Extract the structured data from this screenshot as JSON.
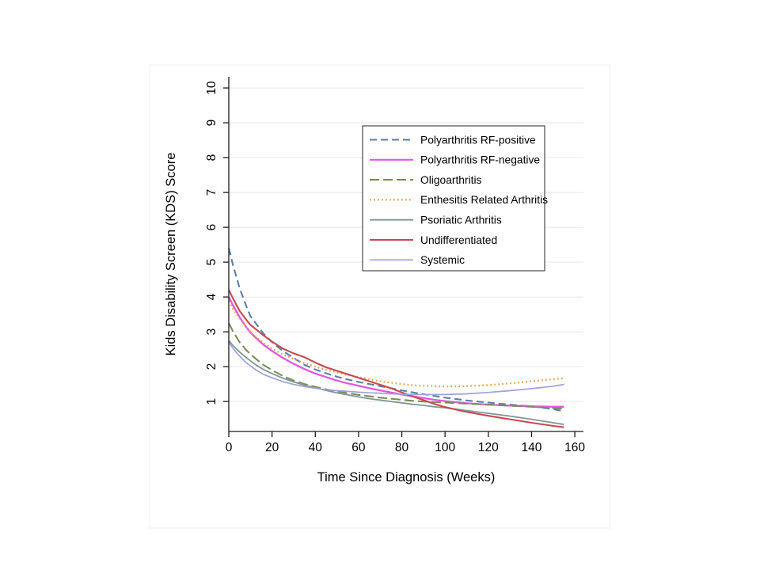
{
  "figure": {
    "background": "#ffffff",
    "border_color": "#ececec",
    "axis_color": "#1a1a1a",
    "gridline_color": "#e7e7e7",
    "text_color": "#000000"
  },
  "chart_data": {
    "type": "line",
    "title": "",
    "xlabel": "Time Since Diagnosis (Weeks)",
    "ylabel": "Kids Disability Screen (KDS) Score",
    "xlim": [
      0,
      164
    ],
    "ylim": [
      0.14,
      10.32
    ],
    "xticks": [
      0,
      20,
      40,
      60,
      80,
      100,
      120,
      140,
      160
    ],
    "yticks": [
      1,
      2,
      3,
      4,
      5,
      6,
      7,
      8,
      9,
      10
    ],
    "grid": "horizontal-only",
    "legend": {
      "position": "upper-right-inside",
      "border_color": "#4a4a4a",
      "background": "#ffffff"
    },
    "x": [
      0,
      2,
      5,
      8,
      10,
      13,
      16,
      20,
      25,
      30,
      35,
      40,
      45,
      50,
      55,
      60,
      65,
      70,
      75,
      80,
      85,
      90,
      95,
      100,
      110,
      120,
      130,
      140,
      150,
      155
    ],
    "series": [
      {
        "name": "Polyarthritis RF-positive",
        "color": "#5b80a5",
        "style": "dashed",
        "width": 2.1,
        "y": [
          5.4,
          4.9,
          4.25,
          3.75,
          3.45,
          3.2,
          2.95,
          2.7,
          2.45,
          2.25,
          2.05,
          1.92,
          1.81,
          1.71,
          1.63,
          1.56,
          1.5,
          1.44,
          1.38,
          1.32,
          1.26,
          1.21,
          1.16,
          1.11,
          1.03,
          0.97,
          0.91,
          0.86,
          0.78,
          0.72
        ]
      },
      {
        "name": "Polyarthritis RF-negative",
        "color": "#e356e3",
        "style": "solid",
        "width": 2.3,
        "y": [
          4.0,
          3.75,
          3.42,
          3.14,
          2.98,
          2.8,
          2.63,
          2.45,
          2.25,
          2.08,
          1.93,
          1.8,
          1.7,
          1.6,
          1.52,
          1.45,
          1.38,
          1.32,
          1.26,
          1.2,
          1.15,
          1.1,
          1.05,
          1.01,
          0.95,
          0.91,
          0.88,
          0.86,
          0.85,
          0.85
        ]
      },
      {
        "name": "Oligoarthritis",
        "color": "#7d8b59",
        "style": "longdash",
        "width": 2.1,
        "y": [
          3.25,
          3.0,
          2.7,
          2.48,
          2.36,
          2.2,
          2.05,
          1.9,
          1.73,
          1.6,
          1.5,
          1.42,
          1.35,
          1.29,
          1.24,
          1.19,
          1.15,
          1.11,
          1.08,
          1.05,
          1.02,
          1.0,
          0.98,
          0.97,
          0.94,
          0.91,
          0.88,
          0.85,
          0.81,
          0.79
        ]
      },
      {
        "name": "Enthesitis Related Arthritis",
        "color": "#efa14f",
        "style": "dotted",
        "width": 2.2,
        "y": [
          3.88,
          3.65,
          3.38,
          3.14,
          3.0,
          2.83,
          2.68,
          2.52,
          2.35,
          2.22,
          2.1,
          2.0,
          1.91,
          1.83,
          1.76,
          1.7,
          1.64,
          1.58,
          1.54,
          1.5,
          1.47,
          1.45,
          1.44,
          1.43,
          1.44,
          1.47,
          1.52,
          1.58,
          1.64,
          1.67
        ]
      },
      {
        "name": "Psoriatic Arthritis",
        "color": "#7f9798",
        "style": "solid",
        "width": 1.8,
        "y": [
          2.75,
          2.6,
          2.42,
          2.26,
          2.17,
          2.03,
          1.92,
          1.8,
          1.67,
          1.56,
          1.47,
          1.39,
          1.32,
          1.25,
          1.19,
          1.13,
          1.08,
          1.04,
          1.0,
          0.96,
          0.92,
          0.89,
          0.85,
          0.82,
          0.74,
          0.66,
          0.58,
          0.49,
          0.39,
          0.34
        ]
      },
      {
        "name": "Undifferentiated",
        "color": "#c64a52",
        "style": "solid",
        "width": 2.1,
        "y": [
          4.2,
          3.95,
          3.6,
          3.35,
          3.2,
          3.05,
          2.9,
          2.72,
          2.52,
          2.38,
          2.27,
          2.12,
          1.98,
          1.88,
          1.78,
          1.68,
          1.58,
          1.48,
          1.38,
          1.26,
          1.15,
          1.04,
          0.93,
          0.84,
          0.7,
          0.59,
          0.49,
          0.39,
          0.3,
          0.26
        ]
      },
      {
        "name": "Systemic",
        "color": "#9da2d8",
        "style": "solid",
        "width": 1.7,
        "y": [
          2.7,
          2.52,
          2.3,
          2.12,
          2.02,
          1.89,
          1.78,
          1.68,
          1.57,
          1.49,
          1.43,
          1.38,
          1.34,
          1.31,
          1.29,
          1.27,
          1.25,
          1.24,
          1.22,
          1.21,
          1.2,
          1.2,
          1.2,
          1.2,
          1.22,
          1.26,
          1.31,
          1.37,
          1.44,
          1.49
        ]
      }
    ]
  }
}
